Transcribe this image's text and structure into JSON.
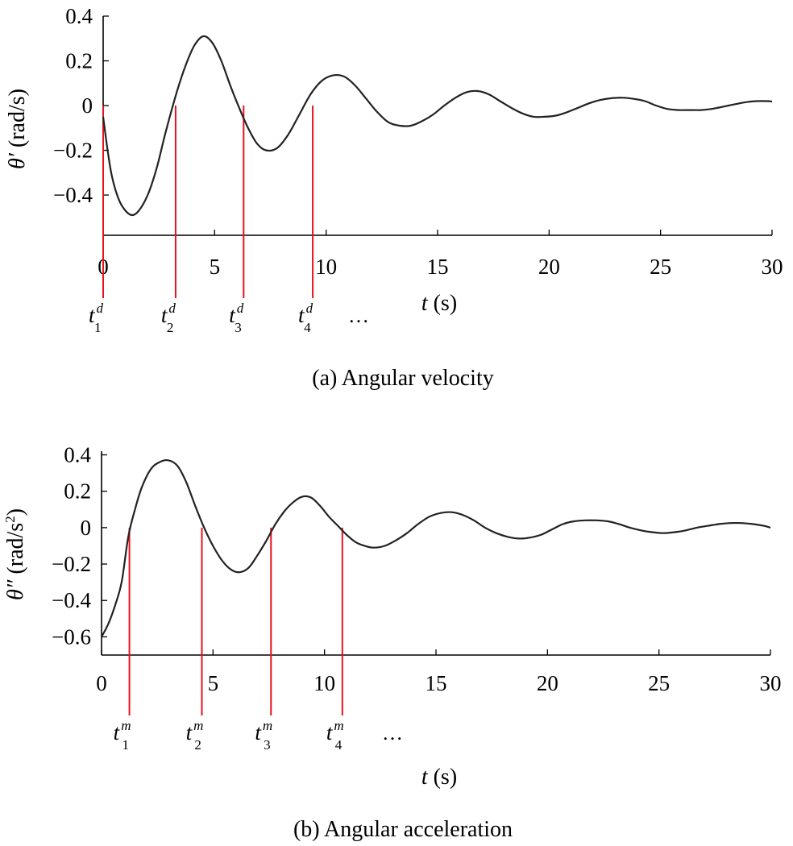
{
  "figure": {
    "colors": {
      "curve": "#222222",
      "axis": "#000000",
      "marker": "#e8121b",
      "background": "#ffffff"
    }
  },
  "chart_data": [
    {
      "id": "a",
      "type": "line",
      "title": "",
      "caption": "(a) Angular velocity",
      "xlabel_var": "t",
      "xlabel_unit": " (s)",
      "ylabel_var": "θ′",
      "ylabel_unit": " (rad/s)",
      "xlim": [
        0,
        30
      ],
      "ylim": [
        -0.58,
        0.4
      ],
      "xticks": [
        0,
        5,
        10,
        15,
        20,
        25,
        30
      ],
      "xtick_labels": [
        "0",
        "5",
        "10",
        "15",
        "20",
        "25",
        "30"
      ],
      "yticks": [
        0.4,
        0.2,
        0,
        -0.2,
        -0.4
      ],
      "ytick_labels": [
        "0.4",
        "0.2",
        "0",
        "−0.2",
        "−0.4"
      ],
      "grid": false,
      "series": [
        {
          "name": "θ′",
          "x": [
            0,
            0.2,
            0.4,
            0.7,
            1.0,
            1.3,
            1.6,
            2.0,
            2.4,
            2.8,
            3.3,
            3.7,
            4.1,
            4.5,
            4.9,
            5.3,
            5.7,
            6.1,
            6.5,
            6.9,
            7.3,
            7.8,
            8.3,
            8.8,
            9.3,
            9.8,
            10.3,
            10.8,
            11.3,
            11.8,
            12.3,
            12.8,
            13.3,
            13.8,
            14.3,
            14.8,
            15.3,
            15.8,
            16.3,
            16.8,
            17.3,
            17.8,
            18.3,
            18.8,
            19.3,
            19.8,
            20.3,
            20.8,
            21.3,
            21.8,
            22.3,
            22.8,
            23.3,
            23.8,
            24.3,
            24.8,
            25.3,
            25.8,
            26.3,
            26.8,
            27.3,
            27.8,
            28.3,
            28.8,
            29.3,
            29.8,
            30.0
          ],
          "y": [
            -0.05,
            -0.2,
            -0.32,
            -0.42,
            -0.47,
            -0.49,
            -0.47,
            -0.4,
            -0.28,
            -0.12,
            0.06,
            0.18,
            0.27,
            0.31,
            0.28,
            0.2,
            0.09,
            -0.01,
            -0.1,
            -0.17,
            -0.2,
            -0.19,
            -0.13,
            -0.04,
            0.05,
            0.11,
            0.135,
            0.13,
            0.09,
            0.03,
            -0.03,
            -0.075,
            -0.09,
            -0.09,
            -0.07,
            -0.04,
            0.0,
            0.035,
            0.06,
            0.065,
            0.05,
            0.02,
            -0.01,
            -0.035,
            -0.05,
            -0.05,
            -0.045,
            -0.03,
            -0.01,
            0.01,
            0.025,
            0.033,
            0.035,
            0.03,
            0.02,
            0.0,
            -0.015,
            -0.02,
            -0.02,
            -0.02,
            -0.015,
            -0.005,
            0.005,
            0.015,
            0.02,
            0.02,
            0.018
          ]
        }
      ],
      "markers": [
        {
          "t": 0.0,
          "var": "t",
          "sup": "d",
          "sub": "1"
        },
        {
          "t": 3.25,
          "var": "t",
          "sup": "d",
          "sub": "2"
        },
        {
          "t": 6.3,
          "var": "t",
          "sup": "d",
          "sub": "3"
        },
        {
          "t": 9.4,
          "var": "t",
          "sup": "d",
          "sub": "4"
        }
      ],
      "ellipsis": "…"
    },
    {
      "id": "b",
      "type": "line",
      "title": "",
      "caption": "(b) Angular acceleration",
      "xlabel_var": "t",
      "xlabel_unit": " (s)",
      "ylabel_var": "θ″",
      "ylabel_unit": " (rad/s",
      "ylabel_sup": "2",
      "ylabel_close": ")",
      "xlim": [
        0,
        30
      ],
      "ylim": [
        -0.7,
        0.42
      ],
      "xticks": [
        0,
        5,
        10,
        15,
        20,
        25,
        30
      ],
      "xtick_labels": [
        "0",
        "5",
        "10",
        "15",
        "20",
        "25",
        "30"
      ],
      "yticks": [
        0.4,
        0.2,
        0,
        -0.2,
        -0.4,
        -0.6
      ],
      "ytick_labels": [
        "0.4",
        "0.2",
        "0",
        "−0.2",
        "−0.4",
        "−0.6"
      ],
      "grid": false,
      "series": [
        {
          "name": "θ″",
          "x": [
            0,
            0.3,
            0.6,
            0.9,
            1.2,
            1.5,
            1.8,
            2.2,
            2.6,
            3.0,
            3.4,
            3.8,
            4.2,
            4.6,
            5.0,
            5.4,
            5.8,
            6.2,
            6.6,
            7.0,
            7.4,
            7.8,
            8.2,
            8.6,
            9.0,
            9.4,
            9.8,
            10.2,
            10.6,
            11.0,
            11.4,
            11.8,
            12.2,
            12.7,
            13.2,
            13.7,
            14.2,
            14.7,
            15.2,
            15.7,
            16.2,
            16.7,
            17.2,
            17.7,
            18.2,
            18.7,
            19.2,
            19.7,
            20.2,
            20.7,
            21.2,
            21.7,
            22.2,
            22.7,
            23.2,
            23.7,
            24.2,
            24.7,
            25.2,
            25.7,
            26.2,
            26.7,
            27.2,
            27.7,
            28.2,
            28.7,
            29.2,
            29.7,
            30.0
          ],
          "y": [
            -0.6,
            -0.53,
            -0.43,
            -0.3,
            -0.05,
            0.1,
            0.22,
            0.32,
            0.36,
            0.37,
            0.34,
            0.25,
            0.12,
            0.0,
            -0.1,
            -0.18,
            -0.23,
            -0.245,
            -0.22,
            -0.15,
            -0.07,
            0.02,
            0.09,
            0.14,
            0.17,
            0.165,
            0.12,
            0.06,
            0.01,
            -0.04,
            -0.08,
            -0.1,
            -0.11,
            -0.1,
            -0.07,
            -0.03,
            0.02,
            0.06,
            0.08,
            0.085,
            0.07,
            0.04,
            0.0,
            -0.03,
            -0.05,
            -0.06,
            -0.055,
            -0.04,
            -0.01,
            0.02,
            0.035,
            0.04,
            0.04,
            0.035,
            0.02,
            0.0,
            -0.015,
            -0.025,
            -0.03,
            -0.025,
            -0.015,
            0.0,
            0.01,
            0.02,
            0.025,
            0.025,
            0.02,
            0.01,
            0.0
          ]
        }
      ],
      "markers": [
        {
          "t": 1.25,
          "var": "t",
          "sup": "m",
          "sub": "1"
        },
        {
          "t": 4.5,
          "var": "t",
          "sup": "m",
          "sub": "2"
        },
        {
          "t": 7.6,
          "var": "t",
          "sup": "m",
          "sub": "3"
        },
        {
          "t": 10.8,
          "var": "t",
          "sup": "m",
          "sub": "4"
        }
      ],
      "ellipsis": "…"
    }
  ]
}
